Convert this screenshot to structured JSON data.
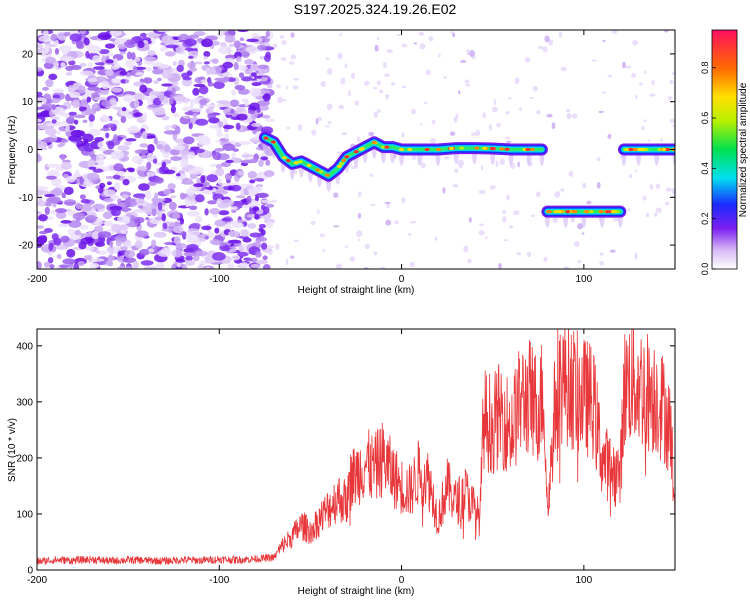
{
  "title": "S197.2025.324.19.26.E02",
  "chart_data": [
    {
      "type": "heatmap",
      "title": "",
      "xlabel": "Height of straight line (km)",
      "ylabel": "Frequency (Hz)",
      "xlim": [
        -200,
        150
      ],
      "ylim": [
        -25,
        25
      ],
      "xticks": [
        -200,
        -100,
        0,
        100
      ],
      "yticks": [
        -20,
        -10,
        0,
        10,
        20
      ],
      "colorbar": {
        "label": "Normalized spectral amplitude",
        "range": [
          0,
          0.95
        ],
        "ticks": [
          0.0,
          0.2,
          0.4,
          0.6,
          0.8
        ]
      },
      "signal_track": [
        {
          "x": -75,
          "freq": 2.5
        },
        {
          "x": -70,
          "freq": 1.5
        },
        {
          "x": -65,
          "freq": -1.5
        },
        {
          "x": -60,
          "freq": -3.0
        },
        {
          "x": -55,
          "freq": -2.5
        },
        {
          "x": -50,
          "freq": -3.5
        },
        {
          "x": -45,
          "freq": -4.5
        },
        {
          "x": -40,
          "freq": -5.5
        },
        {
          "x": -35,
          "freq": -4.0
        },
        {
          "x": -30,
          "freq": -1.5
        },
        {
          "x": -25,
          "freq": -0.5
        },
        {
          "x": -20,
          "freq": 0.5
        },
        {
          "x": -15,
          "freq": 1.5
        },
        {
          "x": -10,
          "freq": 0.5
        },
        {
          "x": -5,
          "freq": 0.5
        },
        {
          "x": 0,
          "freq": 0.0
        },
        {
          "x": 10,
          "freq": 0.0
        },
        {
          "x": 20,
          "freq": 0.0
        },
        {
          "x": 30,
          "freq": 0.3
        },
        {
          "x": 40,
          "freq": 0.3
        },
        {
          "x": 50,
          "freq": 0.2
        },
        {
          "x": 60,
          "freq": 0.0
        },
        {
          "x": 70,
          "freq": 0.0
        },
        {
          "x": 77,
          "freq": 0.0
        },
        {
          "x": 80,
          "freq": -13.0
        },
        {
          "x": 90,
          "freq": -13.0
        },
        {
          "x": 100,
          "freq": -13.0
        },
        {
          "x": 110,
          "freq": -13.0
        },
        {
          "x": 120,
          "freq": -13.0
        },
        {
          "x": 122,
          "freq": 0.0
        },
        {
          "x": 130,
          "freq": 0.0
        },
        {
          "x": 140,
          "freq": 0.0
        },
        {
          "x": 150,
          "freq": 0.0
        }
      ]
    },
    {
      "type": "line",
      "title": "",
      "xlabel": "Height of straight line (km)",
      "ylabel": "SNR (10 * v/v)",
      "xlim": [
        -200,
        150
      ],
      "ylim": [
        0,
        430
      ],
      "xticks": [
        -200,
        -100,
        0,
        100
      ],
      "yticks": [
        0,
        100,
        200,
        300,
        400
      ],
      "color": "#e8373a",
      "series": [
        {
          "name": "SNR",
          "x": [
            -200,
            -190,
            -180,
            -170,
            -160,
            -150,
            -140,
            -130,
            -120,
            -110,
            -100,
            -90,
            -80,
            -70,
            -65,
            -60,
            -55,
            -50,
            -45,
            -40,
            -35,
            -30,
            -28,
            -25,
            -20,
            -15,
            -10,
            -5,
            0,
            5,
            10,
            15,
            20,
            25,
            30,
            35,
            40,
            43,
            45,
            50,
            55,
            60,
            65,
            70,
            72,
            75,
            78,
            80,
            85,
            90,
            95,
            100,
            105,
            110,
            115,
            120,
            122,
            125,
            130,
            135,
            140,
            145,
            148,
            150
          ],
          "values": [
            15,
            18,
            17,
            19,
            16,
            18,
            17,
            16,
            18,
            17,
            19,
            18,
            20,
            22,
            45,
            60,
            80,
            70,
            90,
            110,
            130,
            120,
            160,
            170,
            190,
            180,
            200,
            170,
            150,
            140,
            180,
            160,
            90,
            150,
            120,
            140,
            110,
            90,
            270,
            260,
            280,
            250,
            300,
            310,
            300,
            290,
            320,
            100,
            330,
            340,
            320,
            310,
            300,
            200,
            180,
            170,
            320,
            340,
            330,
            320,
            310,
            280,
            240,
            80
          ]
        }
      ]
    }
  ]
}
